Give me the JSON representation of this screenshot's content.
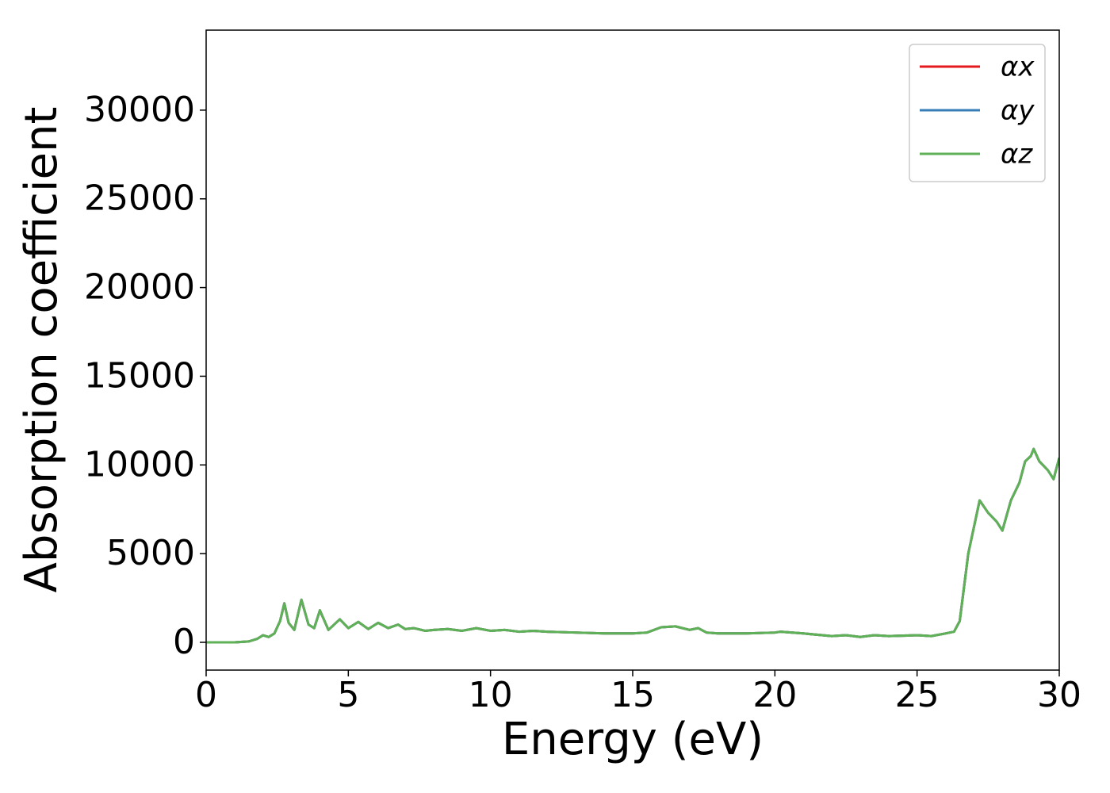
{
  "chart_data": {
    "type": "line",
    "xlabel": "Energy (eV)",
    "ylabel": "Absorption coefficient",
    "x": [
      0,
      1,
      1.5,
      1.8,
      2.0,
      2.2,
      2.4,
      2.6,
      2.75,
      2.9,
      3.1,
      3.35,
      3.6,
      3.8,
      4.0,
      4.3,
      4.7,
      5.0,
      5.35,
      5.7,
      6.05,
      6.4,
      6.75,
      7.0,
      7.3,
      7.7,
      8,
      8.5,
      9,
      9.5,
      10,
      10.5,
      11,
      11.5,
      12,
      13,
      14,
      15,
      15.5,
      16,
      16.5,
      17,
      17.3,
      17.6,
      18,
      19,
      20,
      20.2,
      21,
      22,
      22.5,
      23,
      23.5,
      24,
      25,
      25.5,
      26,
      26.3,
      26.5,
      26.8,
      27.2,
      27.5,
      27.8,
      28,
      28.3,
      28.6,
      28.8,
      29.0,
      29.1,
      29.3,
      29.6,
      29.8,
      30
    ],
    "series": [
      {
        "name": "αx",
        "color": "#e41a1c",
        "values": [
          0,
          0,
          50,
          200,
          400,
          300,
          500,
          1200,
          2200,
          1100,
          700,
          2400,
          1000,
          800,
          1800,
          700,
          1300,
          800,
          1150,
          750,
          1100,
          800,
          1000,
          750,
          800,
          650,
          700,
          750,
          650,
          800,
          650,
          700,
          600,
          650,
          600,
          550,
          500,
          500,
          550,
          850,
          900,
          700,
          800,
          550,
          500,
          500,
          550,
          600,
          500,
          350,
          400,
          300,
          400,
          350,
          400,
          350,
          500,
          600,
          1200,
          5000,
          8000,
          7300,
          6800,
          6300,
          8000,
          9000,
          10200,
          10500,
          10900,
          10200,
          9700,
          9200,
          10400
        ]
      },
      {
        "name": "αy",
        "color": "#377eb8",
        "values": [
          0,
          0,
          50,
          200,
          400,
          300,
          500,
          1200,
          2200,
          1100,
          700,
          2400,
          1000,
          800,
          1800,
          700,
          1300,
          800,
          1150,
          750,
          1100,
          800,
          1000,
          750,
          800,
          650,
          700,
          750,
          650,
          800,
          650,
          700,
          600,
          650,
          600,
          550,
          500,
          500,
          550,
          850,
          900,
          700,
          800,
          550,
          500,
          500,
          550,
          600,
          500,
          350,
          400,
          300,
          400,
          350,
          400,
          350,
          500,
          600,
          1200,
          5000,
          8000,
          7300,
          6800,
          6300,
          8000,
          9000,
          10200,
          10500,
          10900,
          10200,
          9700,
          9200,
          10400
        ]
      },
      {
        "name": "αz",
        "color": "#5fb157",
        "values": [
          0,
          0,
          50,
          200,
          400,
          300,
          500,
          1200,
          2200,
          1100,
          700,
          2400,
          1000,
          800,
          1800,
          700,
          1300,
          800,
          1150,
          750,
          1100,
          800,
          1000,
          750,
          800,
          650,
          700,
          750,
          650,
          800,
          650,
          700,
          600,
          650,
          600,
          550,
          500,
          500,
          550,
          850,
          900,
          700,
          800,
          550,
          500,
          500,
          550,
          600,
          500,
          350,
          400,
          300,
          400,
          350,
          400,
          350,
          500,
          600,
          1200,
          5000,
          8000,
          7300,
          6800,
          6300,
          8000,
          9000,
          10200,
          10500,
          10900,
          10200,
          9700,
          9200,
          10400
        ]
      }
    ],
    "xlim": [
      0,
      30
    ],
    "xticks": [
      0,
      5,
      10,
      15,
      20,
      25,
      30
    ],
    "ylim": [
      -1565,
      34510
    ],
    "yticks": [
      0,
      5000,
      10000,
      15000,
      20000,
      25000,
      30000
    ],
    "legend": "upper right",
    "grid": false
  }
}
